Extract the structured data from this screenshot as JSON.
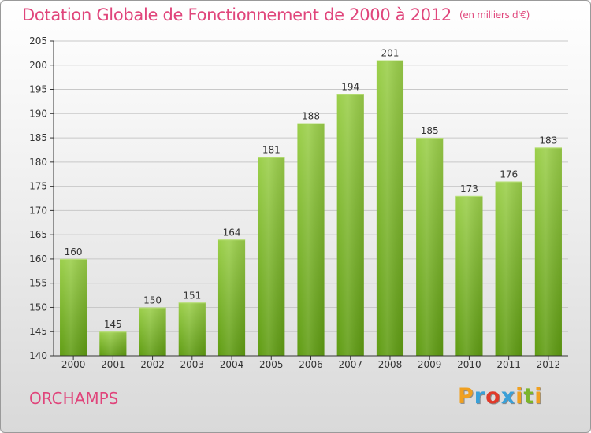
{
  "header": {
    "title": "Dotation Globale de Fonctionnement de 2000 à 2012",
    "unit": "(en milliers d'€)"
  },
  "footer": {
    "commune": "ORCHAMPS",
    "logo_text": "Proxiti",
    "logo_letters": [
      {
        "ch": "P",
        "color": "#f0a020"
      },
      {
        "ch": "r",
        "color": "#3aa0d8"
      },
      {
        "ch": "o",
        "color": "#e03a2a"
      },
      {
        "ch": "x",
        "color": "#3aa0d8"
      },
      {
        "ch": "i",
        "color": "#f0a020"
      },
      {
        "ch": "t",
        "color": "#7ab52a"
      },
      {
        "ch": "i",
        "color": "#f0a020"
      }
    ]
  },
  "colors": {
    "accent": "#e0457b",
    "bar_top": "#9bcf4a",
    "bar_bottom": "#5f9c12",
    "grid": "#c8c8c8",
    "axis": "#333333"
  },
  "chart_data": {
    "type": "bar",
    "title": "Dotation Globale de Fonctionnement de 2000 à 2012",
    "subtitle": "(en milliers d'€)",
    "xlabel": "",
    "ylabel": "",
    "categories": [
      "2000",
      "2001",
      "2002",
      "2003",
      "2004",
      "2005",
      "2006",
      "2007",
      "2008",
      "2009",
      "2010",
      "2011",
      "2012"
    ],
    "values": [
      160,
      145,
      150,
      151,
      164,
      181,
      188,
      194,
      201,
      185,
      173,
      176,
      183
    ],
    "ylim": [
      140,
      205
    ],
    "yticks": [
      140,
      145,
      150,
      155,
      160,
      165,
      170,
      175,
      180,
      185,
      190,
      195,
      200,
      205
    ],
    "grid": true,
    "legend": "none"
  }
}
